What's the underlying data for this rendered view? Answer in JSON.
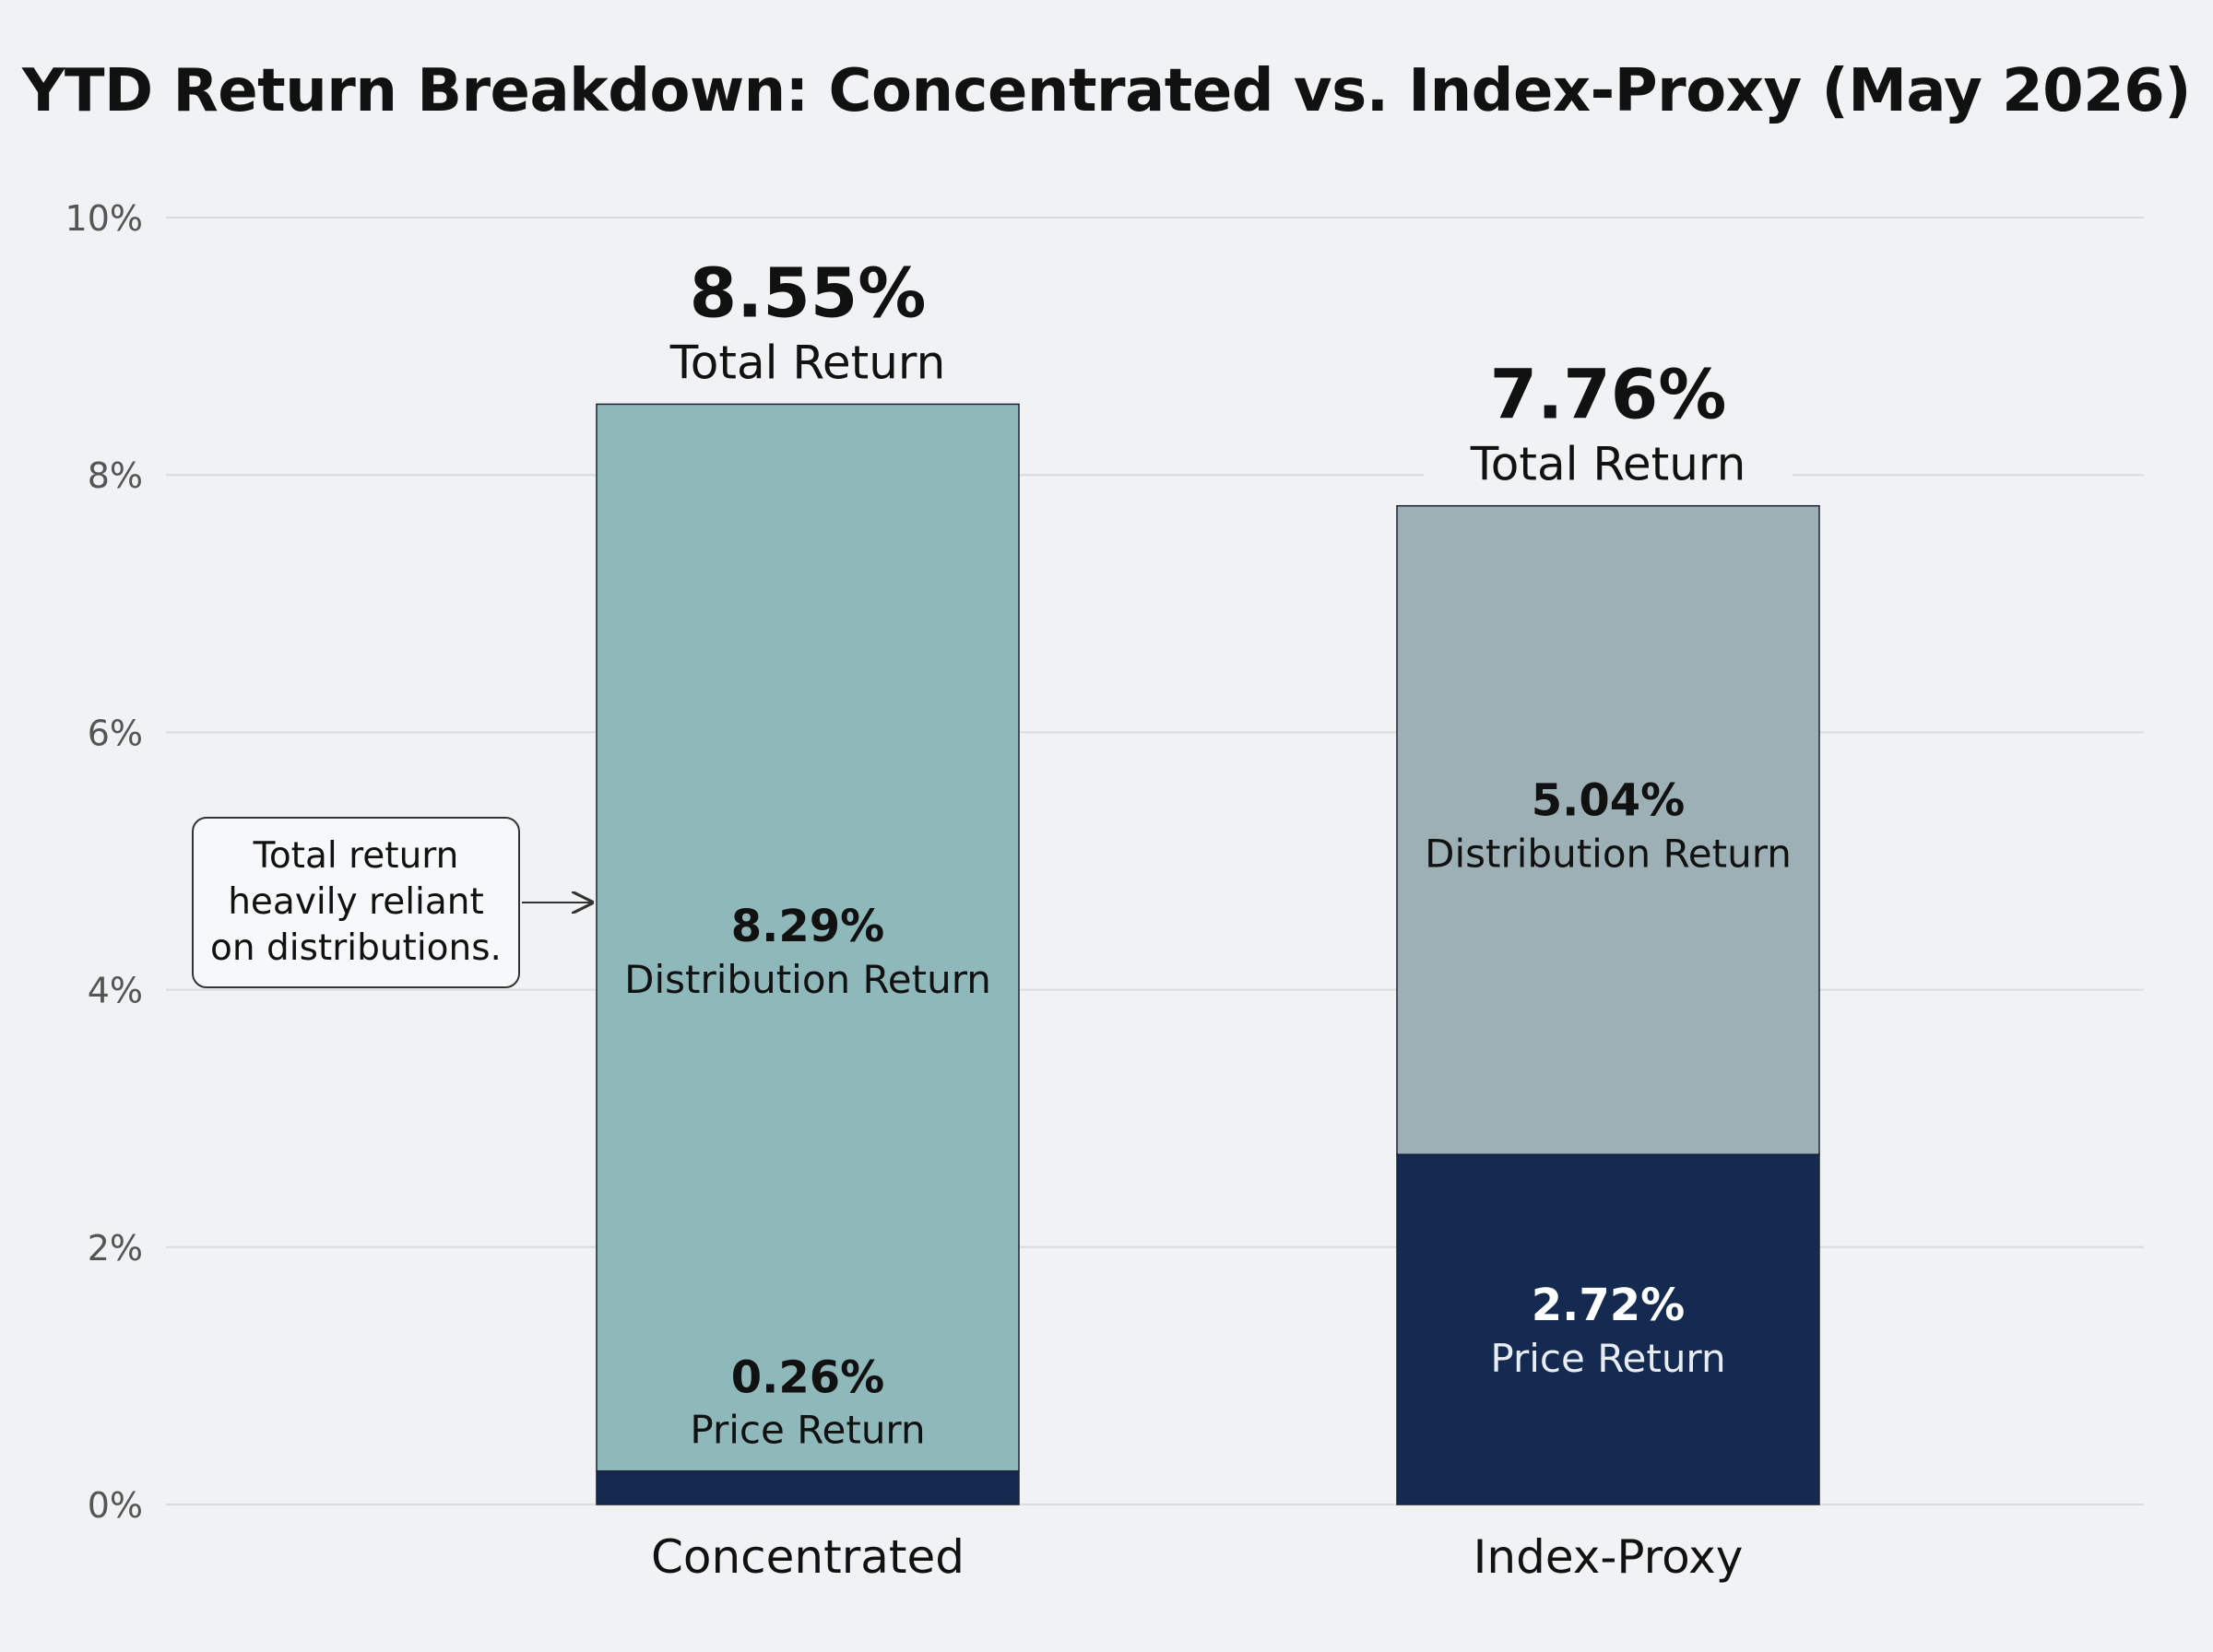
{
  "chart_data": {
    "type": "bar",
    "stacked": true,
    "title": "YTD Return Breakdown: Concentrated vs. Index-Proxy (May 2026)",
    "xlabel": "",
    "ylabel": "",
    "ylim": [
      0,
      10
    ],
    "yticks": [
      0,
      2,
      4,
      6,
      8,
      10
    ],
    "ytick_labels": [
      "0%",
      "2%",
      "4%",
      "6%",
      "8%",
      "10%"
    ],
    "grid": true,
    "categories": [
      "Concentrated",
      "Index-Proxy"
    ],
    "series": [
      {
        "name": "Price Return",
        "values": [
          0.26,
          2.72
        ]
      },
      {
        "name": "Distribution Return",
        "values": [
          8.29,
          5.04
        ]
      }
    ],
    "totals": [
      8.55,
      7.76
    ],
    "total_label": "Total Return",
    "segment_labels": [
      {
        "price_value": "0.26%",
        "price_name": "Price Return",
        "dist_value": "8.29%",
        "dist_name": "Distribution Return",
        "total_value": "8.55%"
      },
      {
        "price_value": "2.72%",
        "price_name": "Price Return",
        "dist_value": "5.04%",
        "dist_name": "Distribution Return",
        "total_value": "7.76%"
      }
    ],
    "colors": {
      "price": "#142a50",
      "distribution": [
        "#8fb8bb",
        "#9db0b5"
      ],
      "grid": "#d9dbde",
      "axis_text": "#555555"
    },
    "annotation": {
      "text": "Total return heavily reliant on distributions.",
      "lines": [
        "Total return",
        "heavily reliant",
        "on distributions."
      ],
      "target_category": "Concentrated"
    }
  }
}
